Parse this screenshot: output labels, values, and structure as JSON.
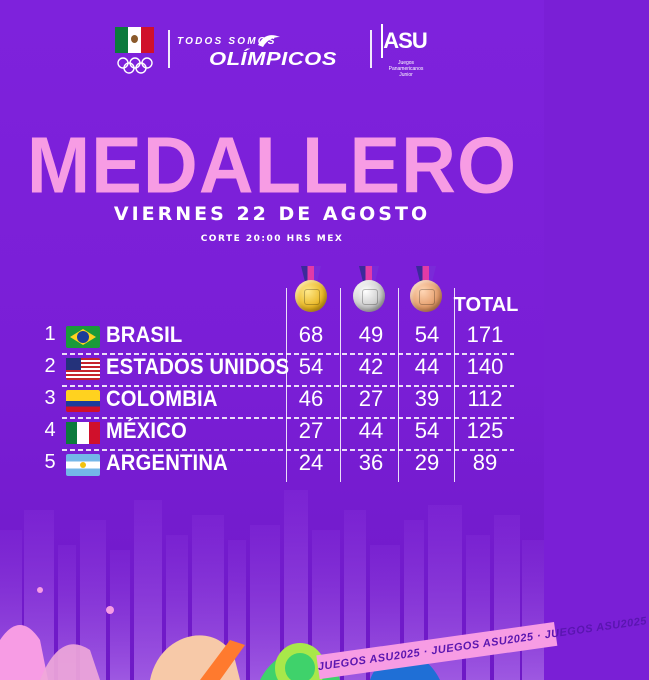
{
  "header": {
    "brand_top": "TODOS SOMOS",
    "brand_main": "OLÍMPICOS",
    "asu_logo": "ASU",
    "asu_subtitle_line1": "Juegos Panamericanos",
    "asu_subtitle_line2": "Junior"
  },
  "title": "MEDALLERO",
  "date": "VIERNES 22 DE AGOSTO",
  "cutoff": "CORTE 20:00 HRS MEX",
  "table": {
    "columns": {
      "gold": "gold-medal-icon",
      "silver": "silver-medal-icon",
      "bronze": "bronze-medal-icon",
      "total": "TOTAL"
    },
    "rows": [
      {
        "rank": "1",
        "country": "BRASIL",
        "flag": "brazil-flag-icon",
        "gold": "68",
        "silver": "49",
        "bronze": "54",
        "total": "171"
      },
      {
        "rank": "2",
        "country": "ESTADOS UNIDOS",
        "flag": "usa-flag-icon",
        "gold": "54",
        "silver": "42",
        "bronze": "44",
        "total": "140"
      },
      {
        "rank": "3",
        "country": "COLOMBIA",
        "flag": "colombia-flag-icon",
        "gold": "46",
        "silver": "27",
        "bronze": "39",
        "total": "112"
      },
      {
        "rank": "4",
        "country": "MÉXICO",
        "flag": "mexico-flag-icon",
        "gold": "27",
        "silver": "44",
        "bronze": "54",
        "total": "125"
      },
      {
        "rank": "5",
        "country": "ARGENTINA",
        "flag": "argentina-flag-icon",
        "gold": "24",
        "silver": "36",
        "bronze": "29",
        "total": "89"
      }
    ]
  },
  "footer": {
    "band_text": "JUEGOS ASU2025 · JUEGOS ASU2025 · JUEGOS ASU2025"
  },
  "colors": {
    "background": "#7a1fd6",
    "title_pink": "#f79ce4",
    "text": "#ffffff"
  }
}
